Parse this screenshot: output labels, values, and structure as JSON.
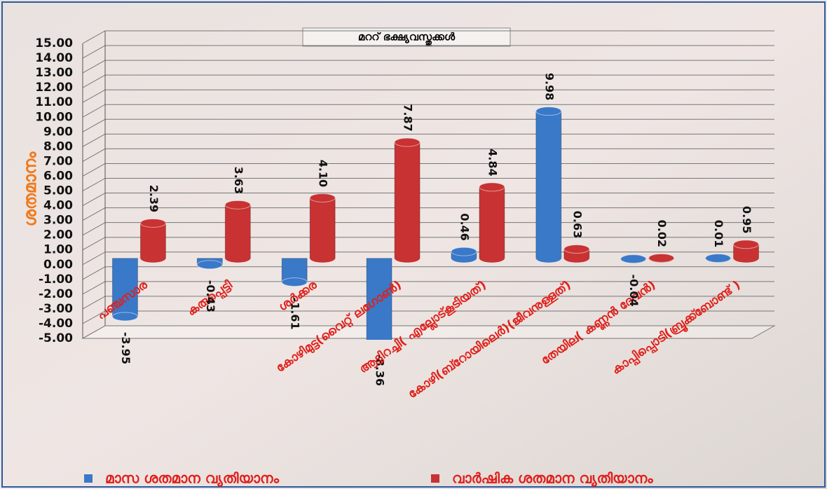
{
  "chart_data": {
    "type": "bar3d",
    "title": "മററ് ഭക്ഷ്യവസ്തുക്കൾ",
    "y_label": "ശതമാനം",
    "categories": [
      "പഞ്ചസാര",
      "കരുപ്പെട്ടി",
      "ശർക്കര",
      "കോഴിമുട്ട(വൈറ്റ് ലഗോൺ)",
      "ആട്ടിറച്ചി( എല്ലോട്കൂടിയത്)",
      "കോഴി(ബ്റോയിലെർ)(ജീവനുള്ളത്)",
      "തേയില( കണ്ണൻ ദേവൻ)",
      "കാപ്പിപ്പൊടി(ബ്രൂക്ക്ബോണ്ട് )"
    ],
    "series": [
      {
        "name": "മാസ ശതമാന വ്യതിയാനം",
        "color": "#3a78c8",
        "values": [
          -3.95,
          -0.43,
          -1.61,
          -8.36,
          0.46,
          9.98,
          -0.04,
          0.01
        ],
        "value_labels": [
          "-3.95",
          "-0.43",
          "-1.61",
          "-8.36",
          "0.46",
          "9.98",
          "-0.04",
          "0.01"
        ]
      },
      {
        "name": "വാർഷിക ശതമാന വ്യതിയാനം",
        "color": "#c83232",
        "values": [
          2.39,
          3.63,
          4.1,
          7.87,
          4.84,
          0.63,
          0.02,
          0.95
        ],
        "value_labels": [
          "2.39",
          "3.63",
          "4.10",
          "7.87",
          "4.84",
          "0.63",
          "0.02",
          "0.95"
        ]
      }
    ],
    "ylim": [
      -5,
      15
    ],
    "yticks": [
      {
        "value": -5,
        "label": "-5.00"
      },
      {
        "value": -4,
        "label": "-4.00"
      },
      {
        "value": -3,
        "label": "-3.00"
      },
      {
        "value": -2,
        "label": "-2.00"
      },
      {
        "value": -1,
        "label": "-1.00"
      },
      {
        "value": 0,
        "label": "0.00"
      },
      {
        "value": 1,
        "label": "1.00"
      },
      {
        "value": 2,
        "label": "2.00"
      },
      {
        "value": 3,
        "label": "3.00"
      },
      {
        "value": 4,
        "label": "4.00"
      },
      {
        "value": 5,
        "label": "5.00"
      },
      {
        "value": 6,
        "label": "6.00"
      },
      {
        "value": 7,
        "label": "7.00"
      },
      {
        "value": 8,
        "label": "8.00"
      },
      {
        "value": 9,
        "label": "9.00"
      },
      {
        "value": 10,
        "label": "10.00"
      },
      {
        "value": 11,
        "label": "11.00"
      },
      {
        "value": 12,
        "label": "12.00"
      },
      {
        "value": 13,
        "label": "13.00"
      },
      {
        "value": 14,
        "label": "14.00"
      },
      {
        "value": 15,
        "label": "15.00"
      }
    ],
    "grid": true
  }
}
